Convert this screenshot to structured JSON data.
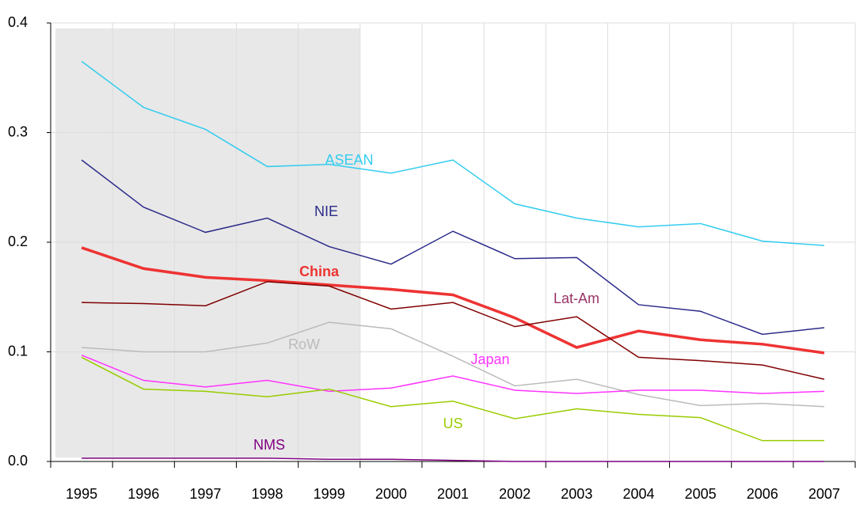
{
  "chart_data": {
    "type": "line",
    "categories": [
      "1995",
      "1996",
      "1997",
      "1998",
      "1999",
      "2000",
      "2001",
      "2002",
      "2003",
      "2004",
      "2005",
      "2006",
      "2007"
    ],
    "series": [
      {
        "name": "ASEAN",
        "color": "#33ccee",
        "values": [
          0.365,
          0.323,
          0.303,
          0.269,
          0.271,
          0.263,
          0.275,
          0.235,
          0.222,
          0.214,
          0.217,
          0.201,
          0.197
        ]
      },
      {
        "name": "NIE",
        "color": "#2b2b8a",
        "values": [
          0.275,
          0.232,
          0.209,
          0.222,
          0.196,
          0.18,
          0.21,
          0.185,
          0.186,
          0.143,
          0.137,
          0.116,
          0.122
        ]
      },
      {
        "name": "China",
        "color": "#ee3333",
        "values": [
          0.195,
          0.176,
          0.168,
          0.165,
          0.161,
          0.157,
          0.152,
          0.131,
          0.104,
          0.119,
          0.111,
          0.107,
          0.099
        ]
      },
      {
        "name": "Lat-Am",
        "color": "#800000",
        "values": [
          0.145,
          0.144,
          0.142,
          0.164,
          0.16,
          0.139,
          0.145,
          0.123,
          0.132,
          0.095,
          0.092,
          0.088,
          0.075
        ]
      },
      {
        "name": "RoW",
        "color": "#bbbbbb",
        "values": [
          0.104,
          0.1,
          0.1,
          0.108,
          0.127,
          0.121,
          0.096,
          0.069,
          0.075,
          0.061,
          0.051,
          0.053,
          0.05
        ]
      },
      {
        "name": "Japan",
        "color": "#ff33ff",
        "values": [
          0.097,
          0.074,
          0.068,
          0.074,
          0.064,
          0.067,
          0.078,
          0.065,
          0.062,
          0.065,
          0.065,
          0.062,
          0.064
        ]
      },
      {
        "name": "US",
        "color": "#99cc00",
        "values": [
          0.095,
          0.066,
          0.064,
          0.059,
          0.066,
          0.05,
          0.055,
          0.039,
          0.048,
          0.043,
          0.04,
          0.019,
          0.019
        ]
      },
      {
        "name": "NMS",
        "color": "#800080",
        "values": [
          0.003,
          0.003,
          0.003,
          0.003,
          0.002,
          0.002,
          0.001,
          0,
          0,
          0,
          0,
          0,
          0
        ]
      }
    ],
    "ylim": [
      0,
      0.4
    ],
    "yticks": [
      {
        "value": 0,
        "label": "0.0"
      },
      {
        "value": 0.1,
        "label": "0.1"
      },
      {
        "value": 0.2,
        "label": "0.2"
      },
      {
        "value": 0.3,
        "label": "0.3"
      },
      {
        "value": 0.4,
        "label": "0.4"
      }
    ],
    "grid": true
  }
}
